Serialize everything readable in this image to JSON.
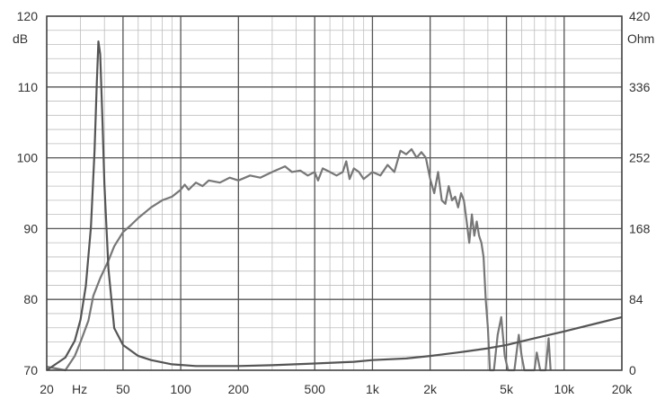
{
  "chart_data": {
    "type": "line",
    "x_scale": "log",
    "grid": true,
    "x_range": [
      20,
      20000
    ],
    "y_left": {
      "unit": "dB",
      "range": [
        70,
        120
      ],
      "ticks": [
        70,
        80,
        90,
        100,
        110,
        120
      ]
    },
    "y_right": {
      "unit": "Ohm",
      "range": [
        0,
        420
      ],
      "ticks": [
        0,
        84,
        168,
        252,
        336,
        420
      ]
    },
    "x_unit": "Hz",
    "x_ticks": [
      {
        "value": 20,
        "label": "20"
      },
      {
        "value": 50,
        "label": "50"
      },
      {
        "value": 100,
        "label": "100"
      },
      {
        "value": 200,
        "label": "200"
      },
      {
        "value": 500,
        "label": "500"
      },
      {
        "value": 1000,
        "label": "1k"
      },
      {
        "value": 2000,
        "label": "2k"
      },
      {
        "value": 5000,
        "label": "5k"
      },
      {
        "value": 10000,
        "label": "10k"
      },
      {
        "value": 20000,
        "label": "20k"
      }
    ],
    "series": [
      {
        "axis": "left",
        "color": "#777777",
        "points": [
          [
            20,
            70.5
          ],
          [
            25,
            69.5
          ],
          [
            28,
            72
          ],
          [
            30,
            74
          ],
          [
            33,
            77
          ],
          [
            35,
            80.5
          ],
          [
            38,
            83
          ],
          [
            42,
            85.5
          ],
          [
            45,
            87.5
          ],
          [
            50,
            89.5
          ],
          [
            55,
            90.5
          ],
          [
            60,
            91.5
          ],
          [
            70,
            93
          ],
          [
            80,
            94
          ],
          [
            90,
            94.5
          ],
          [
            100,
            95.5
          ],
          [
            105,
            96.2
          ],
          [
            110,
            95.5
          ],
          [
            120,
            96.5
          ],
          [
            130,
            96
          ],
          [
            140,
            96.8
          ],
          [
            160,
            96.5
          ],
          [
            180,
            97.2
          ],
          [
            200,
            96.8
          ],
          [
            230,
            97.5
          ],
          [
            260,
            97.2
          ],
          [
            300,
            98
          ],
          [
            350,
            98.8
          ],
          [
            380,
            98
          ],
          [
            420,
            98.2
          ],
          [
            460,
            97.5
          ],
          [
            500,
            98
          ],
          [
            520,
            96.8
          ],
          [
            550,
            98.5
          ],
          [
            600,
            98
          ],
          [
            650,
            97.5
          ],
          [
            700,
            98
          ],
          [
            730,
            99.5
          ],
          [
            760,
            97
          ],
          [
            800,
            98.5
          ],
          [
            850,
            98
          ],
          [
            900,
            97
          ],
          [
            1000,
            98
          ],
          [
            1100,
            97.5
          ],
          [
            1200,
            99
          ],
          [
            1300,
            98
          ],
          [
            1400,
            101
          ],
          [
            1500,
            100.5
          ],
          [
            1600,
            101.2
          ],
          [
            1700,
            100
          ],
          [
            1800,
            100.8
          ],
          [
            1900,
            100
          ],
          [
            2000,
            97
          ],
          [
            2100,
            95
          ],
          [
            2200,
            98
          ],
          [
            2300,
            94
          ],
          [
            2400,
            93.5
          ],
          [
            2500,
            96
          ],
          [
            2600,
            94
          ],
          [
            2700,
            94.5
          ],
          [
            2800,
            93
          ],
          [
            2900,
            95
          ],
          [
            3000,
            94
          ],
          [
            3100,
            91
          ],
          [
            3200,
            88
          ],
          [
            3300,
            92
          ],
          [
            3400,
            89
          ],
          [
            3500,
            91
          ],
          [
            3600,
            89
          ],
          [
            3700,
            88
          ],
          [
            3800,
            86
          ],
          [
            3900,
            80
          ],
          [
            4000,
            76
          ],
          [
            4100,
            70
          ],
          [
            4300,
            70
          ],
          [
            4500,
            75
          ],
          [
            4700,
            77.5
          ],
          [
            4900,
            72
          ],
          [
            5100,
            70
          ],
          [
            5500,
            70
          ],
          [
            5800,
            75
          ],
          [
            6000,
            72
          ],
          [
            6200,
            70
          ],
          [
            7000,
            70
          ],
          [
            7200,
            72.5
          ],
          [
            7500,
            70
          ],
          [
            8000,
            70
          ],
          [
            8300,
            74.5
          ],
          [
            8500,
            70
          ]
        ]
      },
      {
        "axis": "right",
        "color": "#555555",
        "points": [
          [
            20,
            0
          ],
          [
            25,
            15
          ],
          [
            28,
            35
          ],
          [
            30,
            60
          ],
          [
            32,
            100
          ],
          [
            34,
            170
          ],
          [
            35.5,
            260
          ],
          [
            36.5,
            340
          ],
          [
            37.2,
            390
          ],
          [
            38,
            375
          ],
          [
            39,
            300
          ],
          [
            40,
            220
          ],
          [
            42,
            120
          ],
          [
            45,
            50
          ],
          [
            50,
            30
          ],
          [
            60,
            17
          ],
          [
            70,
            12
          ],
          [
            90,
            7
          ],
          [
            120,
            5
          ],
          [
            200,
            5
          ],
          [
            300,
            6
          ],
          [
            500,
            8
          ],
          [
            800,
            10
          ],
          [
            1000,
            12
          ],
          [
            1500,
            14
          ],
          [
            2000,
            17
          ],
          [
            3000,
            22
          ],
          [
            4000,
            26
          ],
          [
            5000,
            30
          ],
          [
            7000,
            38
          ],
          [
            10000,
            46
          ],
          [
            15000,
            56
          ],
          [
            20000,
            63
          ]
        ]
      }
    ]
  }
}
